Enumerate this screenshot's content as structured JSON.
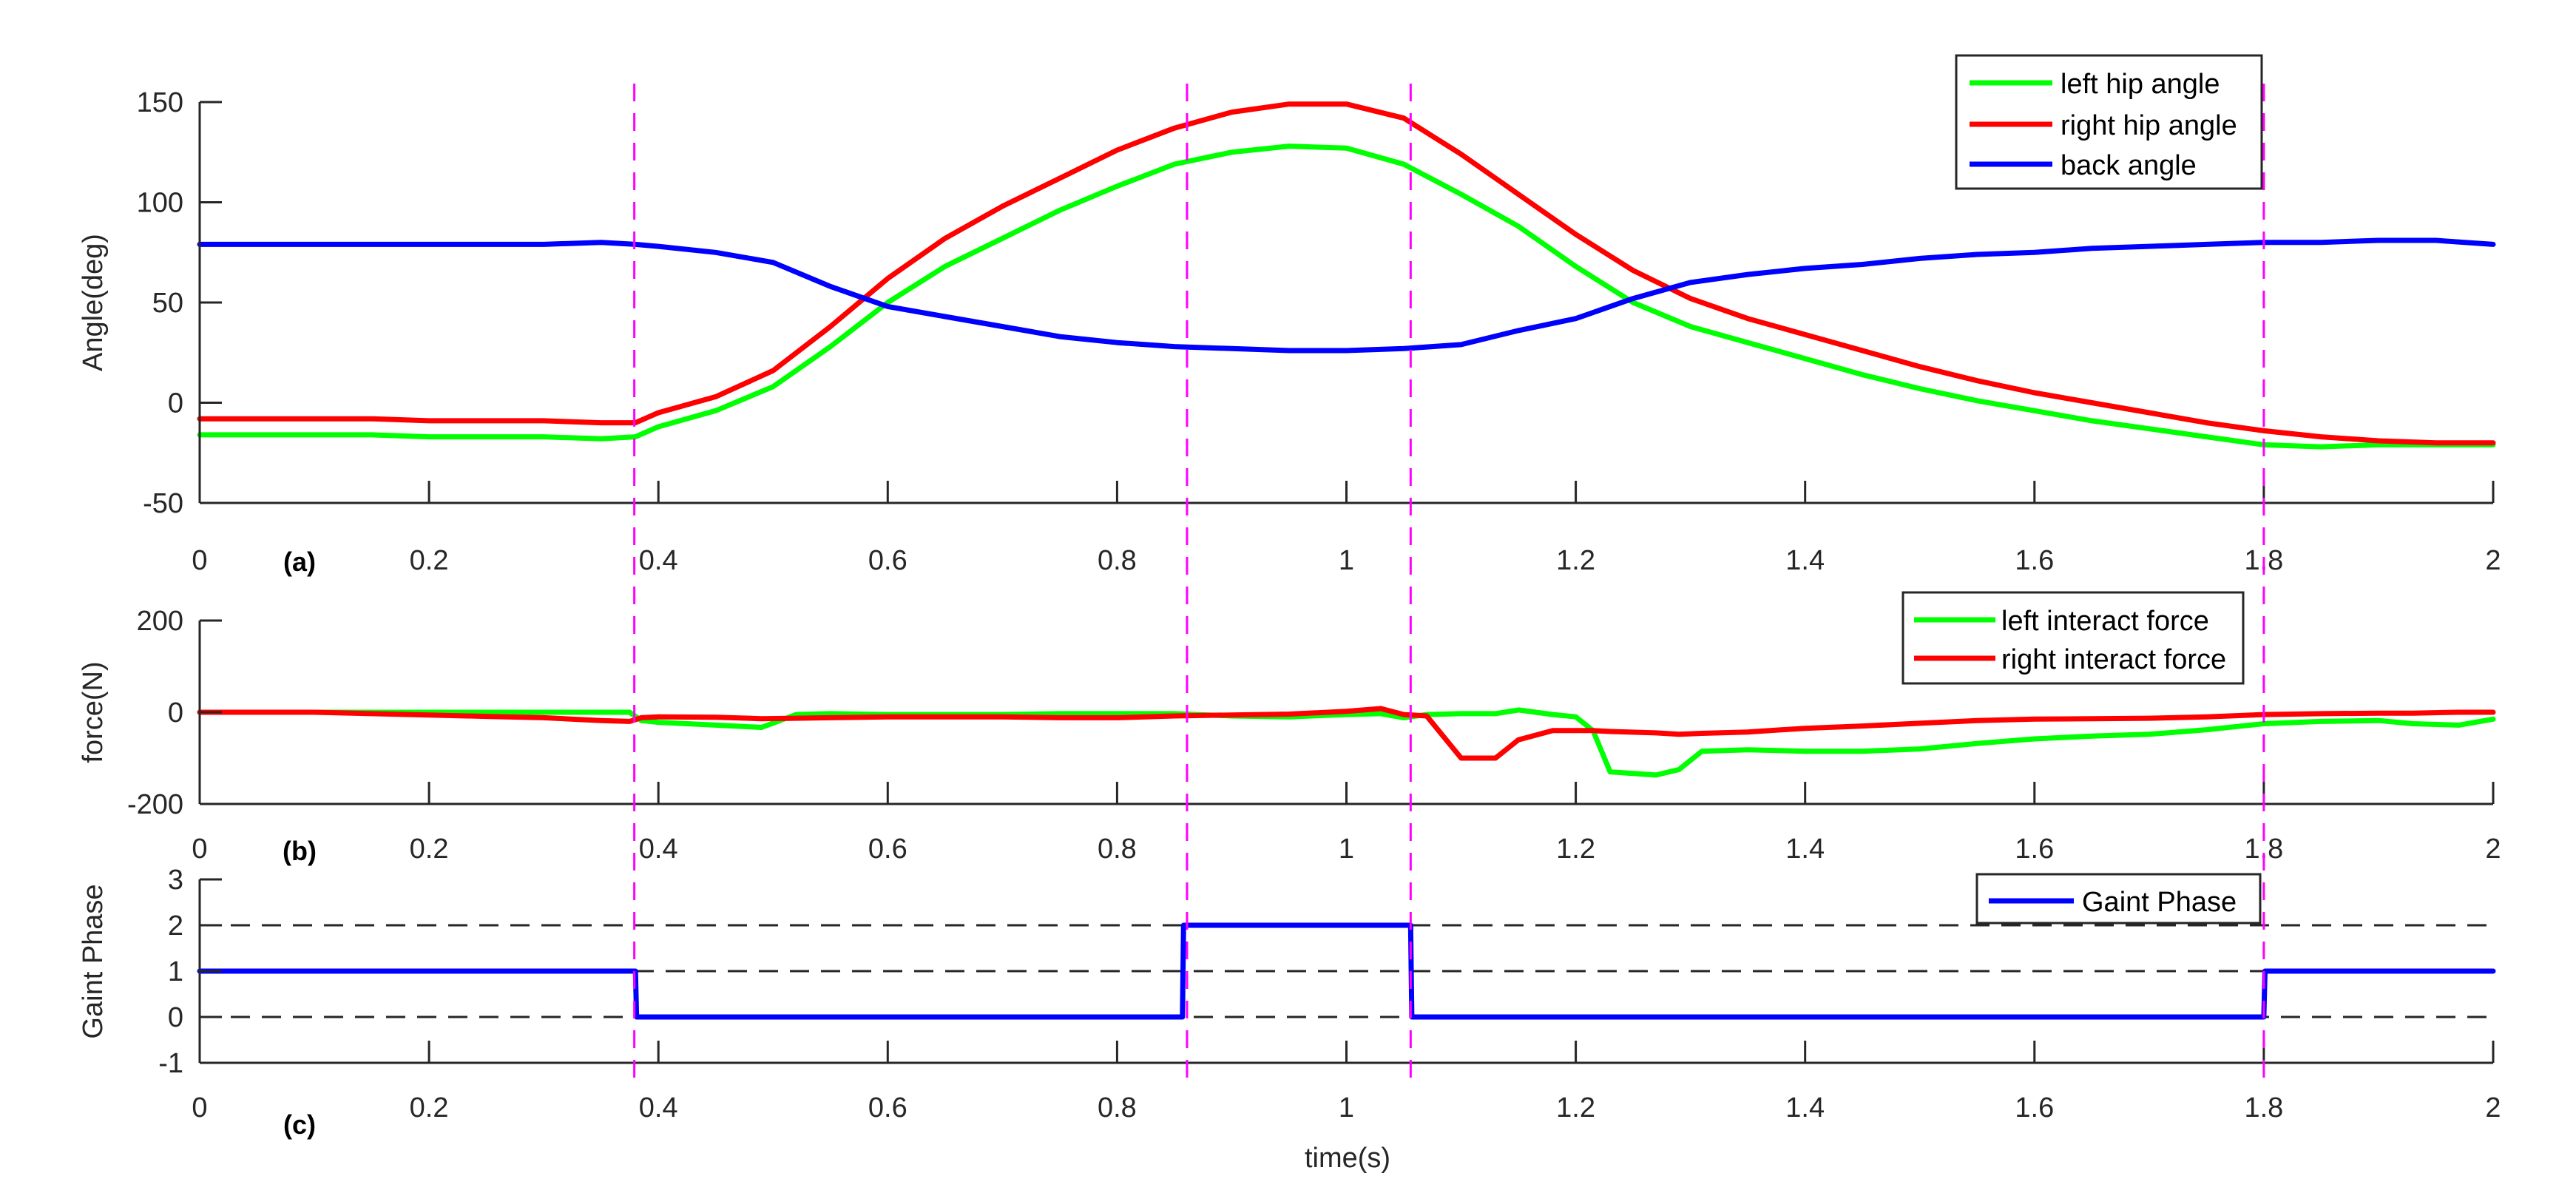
{
  "figure": {
    "xlabel": "time(s)",
    "x_ticks": [
      "0",
      "0.2",
      "0.4",
      "0.6",
      "0.8",
      "1",
      "1.2",
      "1.4",
      "1.6",
      "1.8",
      "2"
    ],
    "event_lines_t": [
      0.379,
      0.861,
      1.056,
      1.8
    ],
    "colors": {
      "green": "#00ff00",
      "red": "#ff0000",
      "blue": "#0000ff",
      "event_line": "#ff00ff",
      "ref_dash": "#262626",
      "axis": "#262626"
    }
  },
  "chart_data": [
    {
      "id": "a",
      "panel_tag": "(a)",
      "type": "line",
      "title": "",
      "xlabel": "",
      "ylabel": "Angle(deg)",
      "xlim": [
        0,
        2
      ],
      "ylim": [
        -50,
        150
      ],
      "y_ticks": [
        "150",
        "100",
        "50",
        "0",
        "-50"
      ],
      "y_tick_values": [
        150,
        100,
        50,
        0,
        -50
      ],
      "grid": false,
      "legend_position": "top-right",
      "x": [
        0,
        0.05,
        0.1,
        0.15,
        0.2,
        0.25,
        0.3,
        0.35,
        0.38,
        0.4,
        0.45,
        0.5,
        0.55,
        0.6,
        0.65,
        0.7,
        0.75,
        0.8,
        0.85,
        0.9,
        0.95,
        1.0,
        1.05,
        1.1,
        1.15,
        1.2,
        1.25,
        1.3,
        1.35,
        1.4,
        1.45,
        1.5,
        1.55,
        1.6,
        1.65,
        1.7,
        1.75,
        1.8,
        1.85,
        1.9,
        1.95,
        2.0
      ],
      "series": [
        {
          "name": "left hip angle",
          "color": "#00ff00",
          "values": [
            -16,
            -16,
            -16,
            -16,
            -17,
            -17,
            -17,
            -18,
            -17,
            -12,
            -4,
            8,
            28,
            50,
            68,
            82,
            96,
            108,
            119,
            125,
            128,
            127,
            119,
            104,
            88,
            68,
            50,
            38,
            30,
            22,
            14,
            7,
            1,
            -4,
            -9,
            -13,
            -17,
            -21,
            -22,
            -21,
            -21,
            -21
          ]
        },
        {
          "name": "right hip angle",
          "color": "#ff0000",
          "values": [
            -8,
            -8,
            -8,
            -8,
            -9,
            -9,
            -9,
            -10,
            -10,
            -5,
            3,
            16,
            38,
            62,
            82,
            98,
            112,
            126,
            137,
            145,
            149,
            149,
            142,
            124,
            104,
            84,
            66,
            52,
            42,
            34,
            26,
            18,
            11,
            5,
            0,
            -5,
            -10,
            -14,
            -17,
            -19,
            -20,
            -20
          ]
        },
        {
          "name": "back angle",
          "color": "#0000ff",
          "values": [
            79,
            79,
            79,
            79,
            79,
            79,
            79,
            80,
            79,
            78,
            75,
            70,
            58,
            48,
            43,
            38,
            33,
            30,
            28,
            27,
            26,
            26,
            27,
            29,
            36,
            42,
            52,
            60,
            64,
            67,
            69,
            72,
            74,
            75,
            77,
            78,
            79,
            80,
            80,
            81,
            81,
            79
          ]
        }
      ]
    },
    {
      "id": "b",
      "panel_tag": "(b)",
      "type": "line",
      "title": "",
      "xlabel": "",
      "ylabel": "force(N)",
      "xlim": [
        0,
        2
      ],
      "ylim": [
        -200,
        200
      ],
      "y_ticks": [
        "200",
        "0",
        "-200"
      ],
      "y_tick_values": [
        200,
        0,
        -200
      ],
      "grid": false,
      "legend_position": "top-right",
      "x": [
        0,
        0.05,
        0.1,
        0.15,
        0.2,
        0.25,
        0.3,
        0.35,
        0.375,
        0.385,
        0.4,
        0.45,
        0.49,
        0.52,
        0.55,
        0.6,
        0.65,
        0.7,
        0.75,
        0.8,
        0.85,
        0.9,
        0.95,
        1.0,
        1.03,
        1.05,
        1.07,
        1.1,
        1.13,
        1.15,
        1.18,
        1.2,
        1.215,
        1.23,
        1.27,
        1.29,
        1.31,
        1.35,
        1.4,
        1.45,
        1.5,
        1.55,
        1.6,
        1.65,
        1.7,
        1.75,
        1.8,
        1.85,
        1.9,
        1.93,
        1.97,
        2.0
      ],
      "series": [
        {
          "name": "left interact force",
          "color": "#00ff00",
          "values": [
            0,
            0,
            0,
            0,
            0,
            0,
            0,
            0,
            0,
            -18,
            -22,
            -28,
            -33,
            -5,
            -3,
            -5,
            -5,
            -5,
            -3,
            -3,
            -3,
            -8,
            -10,
            -5,
            -3,
            -12,
            -5,
            -3,
            -3,
            5,
            -5,
            -10,
            -40,
            -130,
            -137,
            -125,
            -85,
            -82,
            -85,
            -85,
            -80,
            -68,
            -58,
            -52,
            -48,
            -38,
            -25,
            -20,
            -18,
            -25,
            -28,
            -15
          ]
        },
        {
          "name": "right interact force",
          "color": "#ff0000",
          "values": [
            0,
            0,
            0,
            -3,
            -6,
            -9,
            -12,
            -18,
            -20,
            -12,
            -10,
            -11,
            -14,
            -13,
            -12,
            -10,
            -10,
            -10,
            -12,
            -12,
            -8,
            -6,
            -4,
            2,
            8,
            -5,
            -8,
            -100,
            -100,
            -60,
            -40,
            -40,
            -40,
            -42,
            -45,
            -48,
            -46,
            -43,
            -35,
            -30,
            -24,
            -18,
            -15,
            -14,
            -13,
            -10,
            -5,
            -3,
            -2,
            -2,
            0,
            0
          ]
        }
      ]
    },
    {
      "id": "c",
      "panel_tag": "(c)",
      "type": "line",
      "title": "",
      "xlabel": "time(s)",
      "ylabel": "Gaint Phase",
      "xlim": [
        0,
        2
      ],
      "ylim": [
        -1,
        3
      ],
      "y_ticks": [
        "3",
        "2",
        "1",
        "0",
        "-1"
      ],
      "y_tick_values": [
        3,
        2,
        1,
        0,
        -1
      ],
      "grid": false,
      "reference_lines_y": [
        0,
        1,
        2
      ],
      "legend_position": "top-right",
      "x": [
        0,
        0.38,
        0.381,
        0.857,
        0.858,
        1.056,
        1.057,
        1.8,
        1.801,
        2.0
      ],
      "series": [
        {
          "name": "Gaint Phase",
          "color": "#0000ff",
          "values": [
            1,
            1,
            0,
            0,
            2,
            2,
            0,
            0,
            1,
            1
          ]
        }
      ]
    }
  ]
}
